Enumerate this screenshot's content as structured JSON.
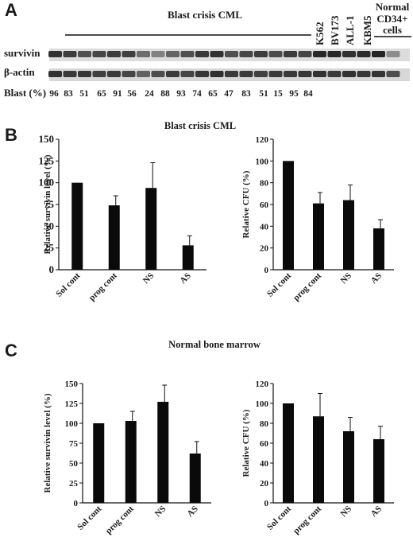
{
  "figure": {
    "panel_a": {
      "letter": "A",
      "group_title": "Blast crisis CML",
      "row_labels": {
        "survivin": "survivin",
        "actin": "β-actin",
        "blast": "Blast (%)"
      },
      "blast_values": [
        "96",
        "83",
        "51",
        "65",
        "91",
        "56",
        "24",
        "88",
        "93",
        "74",
        "65",
        "47",
        "83",
        "51",
        "15",
        "95",
        "84"
      ],
      "cell_lines": [
        "K562",
        "BV173",
        "ALL-1",
        "KBM5"
      ],
      "normal_label_line1": "Normal",
      "normal_label_line2": "CD34+",
      "normal_label_line3": "cells"
    },
    "panel_b": {
      "letter": "B",
      "title": "Blast crisis CML"
    },
    "panel_c": {
      "letter": "C",
      "title": "Normal bone marrow"
    }
  },
  "chart_data": [
    {
      "id": "b-left",
      "type": "bar",
      "categories": [
        "Sol cont",
        "prog cont",
        "NS",
        "AS"
      ],
      "values": [
        100,
        74,
        94,
        28
      ],
      "errors": [
        0,
        11,
        29,
        11
      ],
      "ylabel": "Relative survivin level (%)",
      "ylim": [
        0,
        150
      ],
      "yticks": [
        0,
        25,
        50,
        75,
        100,
        125,
        150
      ],
      "grid": false
    },
    {
      "id": "b-right",
      "type": "bar",
      "categories": [
        "Sol cont",
        "prog cont",
        "NS",
        "AS"
      ],
      "values": [
        100,
        61,
        64,
        38
      ],
      "errors": [
        0,
        10,
        14,
        8
      ],
      "ylabel": "Relative CFU (%)",
      "ylim": [
        0,
        120
      ],
      "yticks": [
        0,
        20,
        40,
        60,
        80,
        100,
        120
      ],
      "grid": false
    },
    {
      "id": "c-left",
      "type": "bar",
      "categories": [
        "Sol cont",
        "prog cont",
        "NS",
        "AS"
      ],
      "values": [
        100,
        103,
        127,
        62
      ],
      "errors": [
        0,
        12,
        21,
        15
      ],
      "ylabel": "Relative survivin level (%)",
      "ylim": [
        0,
        150
      ],
      "yticks": [
        0,
        25,
        50,
        75,
        100,
        125,
        150
      ],
      "grid": false
    },
    {
      "id": "c-right",
      "type": "bar",
      "categories": [
        "Sol cont",
        "prog cont",
        "NS",
        "AS"
      ],
      "values": [
        100,
        87,
        72,
        64
      ],
      "errors": [
        0,
        23,
        14,
        13
      ],
      "ylabel": "Relative CFU (%)",
      "ylim": [
        0,
        120
      ],
      "yticks": [
        0,
        20,
        40,
        60,
        80,
        100,
        120
      ],
      "grid": false
    }
  ]
}
